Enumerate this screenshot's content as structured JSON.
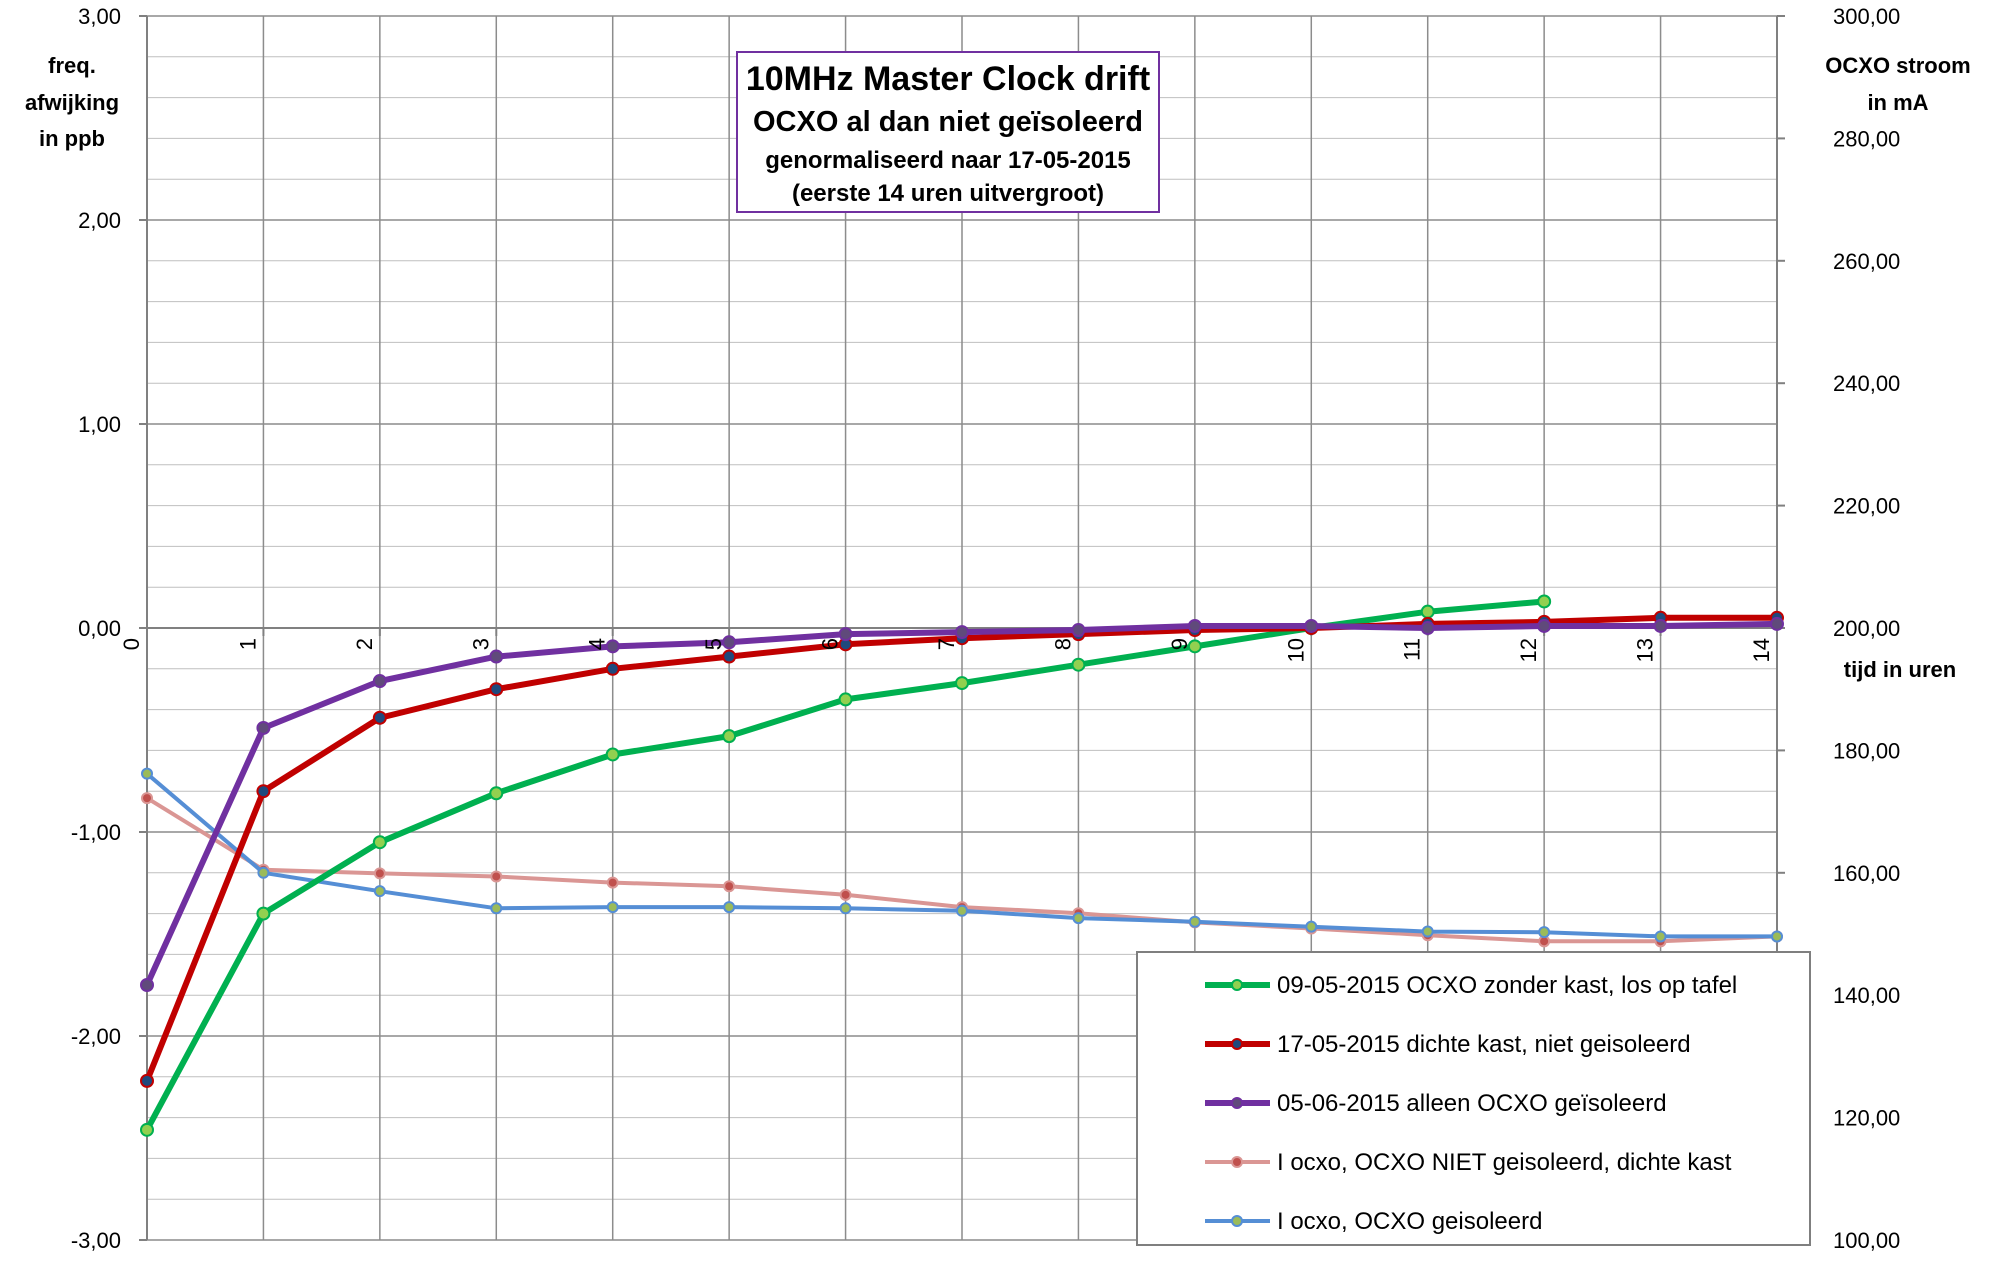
{
  "chart_data": {
    "type": "line",
    "title_lines": [
      "10MHz Master Clock drift",
      "OCXO al dan niet geïsoleerd",
      "genormaliseerd naar 17-05-2015",
      "(eerste 14 uren uitvergroot)"
    ],
    "ylabel_lines": [
      "freq.",
      "afwijking",
      "in ppb"
    ],
    "y2label_lines": [
      "OCXO stroom",
      "in mA"
    ],
    "xlabel": "tijd in uren",
    "xlim": [
      0,
      14
    ],
    "ylim": [
      -3,
      3
    ],
    "y2lim": [
      100,
      300
    ],
    "x_ticks": [
      "0",
      "1",
      "2",
      "3",
      "4",
      "5",
      "6",
      "7",
      "8",
      "9",
      "10",
      "11",
      "12",
      "13",
      "14"
    ],
    "y_ticks": [
      "3,00",
      "2,00",
      "1,00",
      "0,00",
      "-1,00",
      "-2,00",
      "-3,00"
    ],
    "y_tick_values": [
      3,
      2,
      1,
      0,
      -1,
      -2,
      -3
    ],
    "y2_ticks": [
      "300,00",
      "280,00",
      "260,00",
      "240,00",
      "220,00",
      "200,00",
      "180,00",
      "160,00",
      "140,00",
      "120,00",
      "100,00"
    ],
    "y2_tick_values": [
      300,
      280,
      260,
      240,
      220,
      200,
      180,
      160,
      140,
      120,
      100
    ],
    "grid": true,
    "legend_position": "bottom-right",
    "series": [
      {
        "name": "09-05-2015 OCXO zonder kast, los op tafel",
        "axis": "left",
        "color": "#00b050",
        "marker": "#92d050",
        "width": 6,
        "x": [
          0,
          1,
          2,
          3,
          4,
          5,
          6,
          7,
          8,
          9,
          10,
          11,
          12
        ],
        "y": [
          -2.46,
          -1.4,
          -1.05,
          -0.81,
          -0.62,
          -0.53,
          -0.35,
          -0.27,
          -0.18,
          -0.09,
          0.0,
          0.08,
          0.13
        ]
      },
      {
        "name": "17-05-2015 dichte kast, niet geisoleerd",
        "axis": "left",
        "color": "#c00000",
        "marker": "#1f497d",
        "width": 6,
        "x": [
          0,
          1,
          2,
          3,
          4,
          5,
          6,
          7,
          8,
          9,
          10,
          11,
          12,
          13,
          14
        ],
        "y": [
          -2.22,
          -0.8,
          -0.44,
          -0.3,
          -0.2,
          -0.14,
          -0.08,
          -0.05,
          -0.03,
          -0.01,
          0.0,
          0.02,
          0.03,
          0.05,
          0.05
        ]
      },
      {
        "name": "05-06-2015 alleen OCXO geïsoleerd",
        "axis": "left",
        "color": "#7030a0",
        "marker": "#604a7b",
        "width": 6,
        "x": [
          0,
          1,
          2,
          3,
          4,
          5,
          6,
          7,
          8,
          9,
          10,
          11,
          12,
          13,
          14
        ],
        "y": [
          -1.75,
          -0.49,
          -0.26,
          -0.14,
          -0.09,
          -0.07,
          -0.03,
          -0.02,
          -0.01,
          0.01,
          0.01,
          0.0,
          0.01,
          0.01,
          0.02
        ]
      },
      {
        "name": "I ocxo, OCXO NIET geisoleerd, dichte kast",
        "axis": "right",
        "color": "#da9694",
        "marker": "#c0504d",
        "width": 4,
        "x": [
          0,
          1,
          2,
          3,
          4,
          5,
          6,
          7,
          8,
          9,
          10,
          11,
          12,
          13,
          14
        ],
        "y": [
          172.2,
          160.5,
          159.9,
          159.4,
          158.4,
          157.8,
          156.4,
          154.4,
          153.4,
          151.9,
          150.9,
          149.8,
          148.8,
          148.8,
          149.6
        ]
      },
      {
        "name": "I ocxo, OCXO geisoleerd",
        "axis": "right",
        "color": "#558ed5",
        "marker": "#9bbb59",
        "width": 4,
        "x": [
          0,
          1,
          2,
          3,
          4,
          5,
          6,
          7,
          8,
          9,
          10,
          11,
          12,
          13,
          14
        ],
        "y": [
          176.2,
          160.0,
          157.0,
          154.2,
          154.4,
          154.4,
          154.2,
          153.8,
          152.6,
          152.0,
          151.2,
          150.4,
          150.3,
          149.6,
          149.6
        ]
      }
    ]
  }
}
